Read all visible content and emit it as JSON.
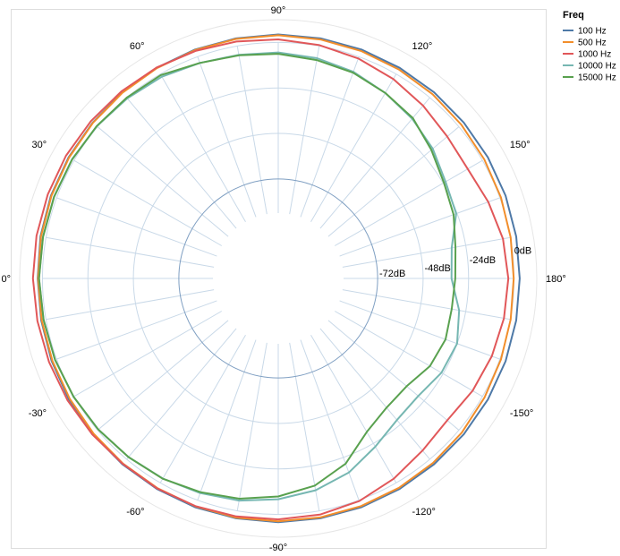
{
  "chart_data": {
    "type": "line",
    "projection": "polar",
    "angle_unit": "degrees",
    "angle_ticks": [
      0,
      30,
      60,
      90,
      120,
      150,
      180,
      -150,
      -120,
      -90,
      -60,
      -30
    ],
    "angle_tick_labels": [
      "0°",
      "30°",
      "60°",
      "90°",
      "120°",
      "150°",
      "180°",
      "-150°",
      "-120°",
      "-90°",
      "-60°",
      "-30°"
    ],
    "angle_grid_step": 10,
    "radial_unit": "dB",
    "radial_range": [
      -90,
      12
    ],
    "radial_ticks": [
      -72,
      -48,
      -24,
      0
    ],
    "radial_tick_labels": [
      "-72dB",
      "-48dB",
      "-24dB",
      "0dB"
    ],
    "radial_grid": [
      -72,
      -48,
      -24,
      0
    ],
    "grid": true,
    "legend": {
      "title": "Freq",
      "position": "top-right"
    },
    "angles": [
      0,
      10,
      20,
      30,
      40,
      50,
      60,
      70,
      80,
      90,
      100,
      110,
      120,
      130,
      140,
      150,
      160,
      170,
      180,
      -170,
      -160,
      -150,
      -140,
      -130,
      -120,
      -110,
      -100,
      -90,
      -80,
      -70,
      -60,
      -50,
      -40,
      -30,
      -20,
      -10
    ],
    "series": [
      {
        "name": "100 Hz",
        "color": "#4e79a7",
        "values": [
          2.5,
          3.0,
          3.2,
          3.3,
          3.4,
          3.6,
          3.8,
          4.0,
          4.1,
          4.2,
          4.1,
          4.0,
          3.8,
          3.6,
          3.4,
          3.3,
          3.2,
          3.1,
          3.0,
          3.1,
          3.2,
          3.3,
          3.4,
          3.5,
          3.7,
          3.9,
          4.0,
          4.1,
          4.0,
          3.9,
          3.7,
          3.5,
          3.3,
          3.1,
          2.8,
          2.6
        ]
      },
      {
        "name": "500 Hz",
        "color": "#f28e2b",
        "values": [
          2.3,
          2.7,
          2.9,
          3.0,
          3.2,
          3.4,
          3.6,
          3.7,
          3.8,
          3.8,
          3.5,
          3.2,
          2.8,
          2.3,
          1.7,
          1.1,
          0.6,
          0.1,
          -0.2,
          0.1,
          0.6,
          1.2,
          2.0,
          2.6,
          3.0,
          3.3,
          3.5,
          3.6,
          3.6,
          3.4,
          3.2,
          3.0,
          2.8,
          2.6,
          2.4,
          2.3
        ]
      },
      {
        "name": "1000 Hz",
        "color": "#e15759",
        "values": [
          5.0,
          5.1,
          5.0,
          4.9,
          4.6,
          4.3,
          4.0,
          3.2,
          2.4,
          1.6,
          0.5,
          -1.0,
          -3.0,
          -5.5,
          -8.0,
          -9.0,
          -6.5,
          -4.0,
          -3.0,
          -3.5,
          -4.5,
          -6.0,
          -8.0,
          -6.0,
          -2.5,
          0.5,
          2.0,
          2.6,
          3.0,
          3.3,
          3.4,
          3.2,
          3.6,
          4.0,
          4.3,
          4.6
        ]
      },
      {
        "name": "10000 Hz",
        "color": "#76b7b2",
        "values": [
          1.8,
          1.7,
          1.5,
          1.2,
          0.5,
          -0.5,
          -1.6,
          -3.5,
          -4.7,
          -5.3,
          -6.5,
          -8.5,
          -11.5,
          -14.5,
          -18.0,
          -22.5,
          -24.5,
          -31.5,
          -33.0,
          -27.5,
          -24.0,
          -25.0,
          -28.0,
          -27.0,
          -22.0,
          -15.5,
          -11.0,
          -8.0,
          -5.5,
          -4.0,
          -2.6,
          -1.5,
          -0.5,
          0.3,
          0.9,
          1.3
        ]
      },
      {
        "name": "15000 Hz",
        "color": "#59a14f",
        "values": [
          1.8,
          1.6,
          1.4,
          1.1,
          0.6,
          0.0,
          -0.6,
          -3.5,
          -5.0,
          -6.0,
          -7.5,
          -9.0,
          -11.5,
          -14.0,
          -19.0,
          -23.5,
          -26.0,
          -29.5,
          -31.0,
          -31.5,
          -30.5,
          -32.0,
          -36.0,
          -35.5,
          -31.0,
          -20.5,
          -13.5,
          -9.5,
          -6.5,
          -4.5,
          -2.5,
          -1.5,
          -0.5,
          0.3,
          0.9,
          1.3
        ]
      }
    ]
  }
}
